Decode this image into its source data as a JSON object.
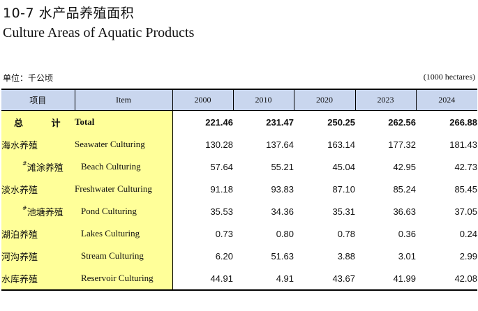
{
  "title_cn": "10-7 水产品养殖面积",
  "title_en": "Culture Areas of Aquatic Products",
  "unit_cn": "单位：千公顷",
  "unit_en": "(1000 hectares)",
  "header": {
    "item_cn": "项目",
    "item_en": "Item",
    "years": [
      "2000",
      "2010",
      "2020",
      "2023",
      "2024"
    ]
  },
  "rows": [
    {
      "cn": "总 计",
      "mark": "",
      "en": "Total",
      "level": "total",
      "values": [
        "221.46",
        "231.47",
        "250.25",
        "262.56",
        "266.88"
      ]
    },
    {
      "cn": "海水养殖",
      "mark": "",
      "en": "Seawater Culturing",
      "level": "l1",
      "values": [
        "130.28",
        "137.64",
        "163.14",
        "177.32",
        "181.43"
      ]
    },
    {
      "cn": "滩涂养殖",
      "mark": "#",
      "en": "Beach Culturing",
      "level": "l1s",
      "values": [
        "57.64",
        "55.21",
        "45.04",
        "42.95",
        "42.73"
      ]
    },
    {
      "cn": "淡水养殖",
      "mark": "",
      "en": "Freshwater Culturing",
      "level": "l1",
      "values": [
        "91.18",
        "93.83",
        "87.10",
        "85.24",
        "85.45"
      ]
    },
    {
      "cn": "池塘养殖",
      "mark": "#",
      "en": "Pond Culturing",
      "level": "l1s",
      "values": [
        "35.53",
        "34.36",
        "35.31",
        "36.63",
        "37.05"
      ]
    },
    {
      "cn": "湖泊养殖",
      "mark": "",
      "en": "Lakes Culturing",
      "level": "l2",
      "values": [
        "0.73",
        "0.80",
        "0.78",
        "0.36",
        "0.24"
      ]
    },
    {
      "cn": "河沟养殖",
      "mark": "",
      "en": "Stream Culturing",
      "level": "l2",
      "values": [
        "6.20",
        "51.63",
        "3.88",
        "3.01",
        "2.99"
      ]
    },
    {
      "cn": "水库养殖",
      "mark": "",
      "en": "Reservoir Culturing",
      "level": "l2",
      "values": [
        "44.91",
        "4.91",
        "43.67",
        "41.99",
        "42.08"
      ]
    }
  ]
}
